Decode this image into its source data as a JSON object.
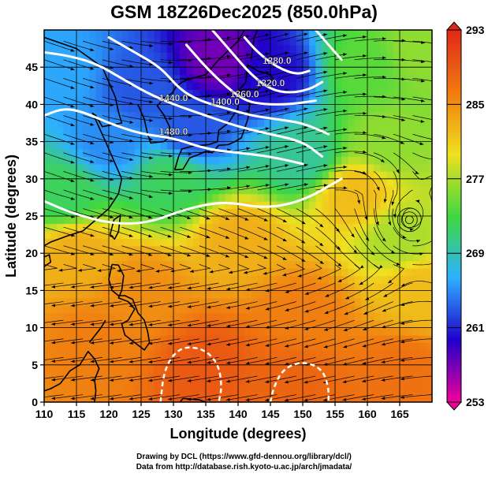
{
  "chart_data": {
    "type": "heatmap",
    "title": "GSM 18Z26Dec2025 (850.0hPa)",
    "xlabel": "Longitude (degrees)",
    "ylabel": "Latitude  (degrees)",
    "xlim": [
      110,
      170
    ],
    "ylim": [
      0,
      50
    ],
    "x_ticks": [
      110,
      115,
      120,
      125,
      130,
      135,
      140,
      145,
      150,
      155,
      160,
      165
    ],
    "y_ticks": [
      0,
      5,
      10,
      15,
      20,
      25,
      30,
      35,
      40,
      45
    ],
    "grid": true,
    "colorbar": {
      "ticks": [
        253,
        261,
        269,
        277,
        285,
        293
      ],
      "range": [
        253,
        293
      ],
      "colors": [
        "#f0009a",
        "#2000c8",
        "#2db0ff",
        "#40d840",
        "#f0e020",
        "#f07a10",
        "#e02818"
      ]
    },
    "temperature_anchors": [
      {
        "lon": 137,
        "lat": 46,
        "value": 257
      },
      {
        "lon": 145,
        "lat": 44,
        "value": 260
      },
      {
        "lon": 125,
        "lat": 42,
        "value": 263
      },
      {
        "lon": 112,
        "lat": 44,
        "value": 266
      },
      {
        "lon": 120,
        "lat": 35,
        "value": 265
      },
      {
        "lon": 133,
        "lat": 36,
        "value": 263
      },
      {
        "lon": 160,
        "lat": 45,
        "value": 274
      },
      {
        "lon": 168,
        "lat": 47,
        "value": 276
      },
      {
        "lon": 113,
        "lat": 28,
        "value": 272
      },
      {
        "lon": 130,
        "lat": 30,
        "value": 272
      },
      {
        "lon": 150,
        "lat": 33,
        "value": 270
      },
      {
        "lon": 163,
        "lat": 35,
        "value": 276
      },
      {
        "lon": 158,
        "lat": 28,
        "value": 282
      },
      {
        "lon": 140,
        "lat": 22,
        "value": 283
      },
      {
        "lon": 115,
        "lat": 20,
        "value": 283
      },
      {
        "lon": 165,
        "lat": 22,
        "value": 277
      },
      {
        "lon": 168,
        "lat": 15,
        "value": 282
      },
      {
        "lon": 125,
        "lat": 15,
        "value": 285
      },
      {
        "lon": 150,
        "lat": 12,
        "value": 286
      },
      {
        "lon": 118,
        "lat": 8,
        "value": 286
      },
      {
        "lon": 135,
        "lat": 5,
        "value": 289
      },
      {
        "lon": 148,
        "lat": 3,
        "value": 288
      },
      {
        "lon": 165,
        "lat": 4,
        "value": 287
      }
    ],
    "contour_labels": [
      "1480.0",
      "1440.0",
      "1400.0",
      "1360.0",
      "1320.0",
      "1280.0"
    ],
    "contours": [
      {
        "label": "1480.0",
        "points": [
          [
            110,
            38.5
          ],
          [
            113,
            39.5
          ],
          [
            116,
            39
          ],
          [
            120,
            37.5
          ],
          [
            125,
            36
          ],
          [
            130,
            35.5
          ],
          [
            135,
            34
          ],
          [
            140,
            33.5
          ],
          [
            145,
            33
          ],
          [
            150,
            32
          ]
        ]
      },
      {
        "label": "1440.0",
        "points": [
          [
            110,
            47
          ],
          [
            114,
            46.5
          ],
          [
            118,
            45.5
          ],
          [
            122,
            43.5
          ],
          [
            126,
            41.5
          ],
          [
            130,
            40
          ],
          [
            135,
            38.5
          ],
          [
            140,
            37
          ],
          [
            145,
            36
          ],
          [
            150,
            35
          ],
          [
            153,
            33
          ]
        ]
      },
      {
        "label": "1400.0",
        "points": [
          [
            120,
            49
          ],
          [
            124,
            47
          ],
          [
            128,
            45
          ],
          [
            131,
            42
          ],
          [
            134,
            40.5
          ],
          [
            138,
            39.5
          ],
          [
            142,
            38.5
          ],
          [
            146,
            38
          ],
          [
            150,
            37.5
          ],
          [
            154,
            36
          ]
        ]
      },
      {
        "label": "1360.0",
        "points": [
          [
            132,
            48
          ],
          [
            135,
            45
          ],
          [
            138,
            42.5
          ],
          [
            141,
            40.5
          ],
          [
            144,
            40
          ],
          [
            148,
            40
          ],
          [
            152,
            40.5
          ]
        ]
      },
      {
        "label": "1320.0",
        "points": [
          [
            136,
            50
          ],
          [
            139,
            47
          ],
          [
            142,
            44
          ],
          [
            145,
            42
          ],
          [
            148,
            41.5
          ],
          [
            151,
            42
          ],
          [
            153,
            43
          ]
        ]
      },
      {
        "label": "1280.0",
        "points": [
          [
            141,
            49
          ],
          [
            143,
            47
          ],
          [
            146,
            45
          ],
          [
            149,
            44
          ],
          [
            151,
            44.5
          ]
        ]
      },
      {
        "label": "",
        "points": [
          [
            152,
            50
          ],
          [
            154,
            48
          ],
          [
            156,
            46
          ]
        ]
      },
      {
        "label": "",
        "points": [
          [
            110,
            27
          ],
          [
            114,
            25.5
          ],
          [
            120,
            24
          ],
          [
            126,
            24
          ],
          [
            132,
            26
          ],
          [
            138,
            27
          ],
          [
            144,
            26
          ],
          [
            150,
            27
          ],
          [
            156,
            30
          ]
        ]
      }
    ],
    "dashed_contours": [
      {
        "points": [
          [
            128,
            0
          ],
          [
            128.5,
            4
          ],
          [
            130,
            6.5
          ],
          [
            132,
            7.5
          ],
          [
            135,
            7
          ],
          [
            137,
            5
          ],
          [
            137.5,
            2
          ],
          [
            137,
            0
          ]
        ]
      },
      {
        "points": [
          [
            145,
            0
          ],
          [
            145.5,
            2
          ],
          [
            147,
            4.5
          ],
          [
            150,
            5.5
          ],
          [
            153,
            4.5
          ],
          [
            154,
            2
          ],
          [
            154,
            0
          ]
        ]
      }
    ],
    "coastlines": [
      [
        [
          110,
          49
        ],
        [
          115,
          47.5
        ],
        [
          119,
          45
        ],
        [
          121,
          41
        ],
        [
          121.5,
          39
        ],
        [
          122,
          37.5
        ],
        [
          119,
          37
        ],
        [
          118,
          38.5
        ],
        [
          117.5,
          38.8
        ],
        [
          119.5,
          35
        ],
        [
          121,
          32
        ],
        [
          122,
          30
        ],
        [
          121.5,
          28
        ],
        [
          120,
          26
        ],
        [
          118,
          24.5
        ],
        [
          116,
          23
        ],
        [
          113.5,
          22.3
        ],
        [
          111,
          21.5
        ],
        [
          110,
          21
        ]
      ],
      [
        [
          124.5,
          40
        ],
        [
          125.5,
          38
        ],
        [
          126,
          36
        ],
        [
          126.5,
          34.8
        ],
        [
          128.5,
          35
        ],
        [
          129.5,
          35.7
        ],
        [
          129.4,
          37
        ],
        [
          128.5,
          38.6
        ],
        [
          127.5,
          39.8
        ],
        [
          128.5,
          40.8
        ],
        [
          129.8,
          41.5
        ],
        [
          130.5,
          42.5
        ],
        [
          132,
          43.3
        ],
        [
          135,
          44
        ],
        [
          137,
          46
        ],
        [
          140,
          48.5
        ],
        [
          141,
          50
        ]
      ],
      [
        [
          130.2,
          31.2
        ],
        [
          130.8,
          33
        ],
        [
          131.3,
          34
        ],
        [
          133,
          34.4
        ],
        [
          135.5,
          34.6
        ],
        [
          136.8,
          35
        ],
        [
          137,
          36.5
        ],
        [
          138.5,
          37.5
        ],
        [
          140,
          39.5
        ],
        [
          140,
          41
        ],
        [
          141,
          41.5
        ],
        [
          141.8,
          40
        ],
        [
          141.5,
          38
        ],
        [
          140.9,
          36.5
        ],
        [
          140.5,
          35.5
        ],
        [
          139.5,
          35
        ],
        [
          138.5,
          34.6
        ],
        [
          137,
          34.5
        ],
        [
          136,
          33.5
        ],
        [
          135,
          33.7
        ],
        [
          134,
          33.3
        ],
        [
          132.5,
          32.8
        ],
        [
          131.5,
          31.3
        ],
        [
          130.2,
          31.2
        ]
      ],
      [
        [
          140,
          41.8
        ],
        [
          141.2,
          43
        ],
        [
          141.5,
          45.3
        ],
        [
          143,
          44.5
        ],
        [
          145,
          44
        ],
        [
          145.5,
          43.3
        ],
        [
          144,
          42.9
        ],
        [
          143,
          42
        ],
        [
          141,
          42
        ],
        [
          140,
          41.8
        ]
      ],
      [
        [
          142,
          46
        ],
        [
          142.5,
          49
        ],
        [
          143,
          50
        ]
      ],
      [
        [
          120.2,
          22.5
        ],
        [
          120.8,
          24.5
        ],
        [
          121.8,
          25.1
        ],
        [
          121.5,
          22.9
        ],
        [
          120.9,
          21.9
        ],
        [
          120.2,
          22.5
        ]
      ],
      [
        [
          120.5,
          18.5
        ],
        [
          121.5,
          18.4
        ],
        [
          122.3,
          17
        ],
        [
          122,
          15
        ],
        [
          121.5,
          14
        ],
        [
          123,
          13.5
        ],
        [
          124,
          12.5
        ],
        [
          123,
          11
        ],
        [
          122,
          10.5
        ],
        [
          122.5,
          9
        ],
        [
          124,
          8
        ],
        [
          125.5,
          7
        ],
        [
          126.3,
          8
        ],
        [
          126,
          9.5
        ],
        [
          125.5,
          11
        ],
        [
          124.5,
          12
        ],
        [
          123.7,
          13.8
        ],
        [
          122.5,
          14.3
        ],
        [
          121.5,
          14.3
        ],
        [
          120.5,
          15
        ],
        [
          120,
          16.5
        ],
        [
          120.5,
          18.5
        ]
      ],
      [
        [
          117,
          8
        ],
        [
          118.8,
          10
        ],
        [
          119.5,
          11
        ]
      ],
      [
        [
          110,
          1.5
        ],
        [
          111,
          1.8
        ],
        [
          112.5,
          2.5
        ],
        [
          114,
          4.2
        ],
        [
          115.5,
          5
        ],
        [
          116.8,
          6.8
        ],
        [
          117.8,
          5.8
        ],
        [
          118.5,
          4.5
        ],
        [
          117.8,
          3
        ],
        [
          118,
          1.5
        ],
        [
          117.8,
          0
        ]
      ],
      [
        [
          110,
          19.5
        ],
        [
          110.8,
          19.8
        ],
        [
          111,
          18.8
        ],
        [
          110,
          18.2
        ]
      ],
      [
        [
          131,
          0
        ],
        [
          131.5,
          0.5
        ],
        [
          134,
          0.3
        ],
        [
          135,
          0
        ]
      ]
    ],
    "cyclone": {
      "lon": 166.5,
      "lat": 24.5
    }
  },
  "colorbar_labels": [
    "293",
    "285",
    "277",
    "269",
    "261",
    "253"
  ],
  "credits": {
    "line1": "Drawing by DCL (https://www.gfd-dennou.org/library/dcl/)",
    "line2": "Data from http://database.rish.kyoto-u.ac.jp/arch/jmadata/"
  }
}
